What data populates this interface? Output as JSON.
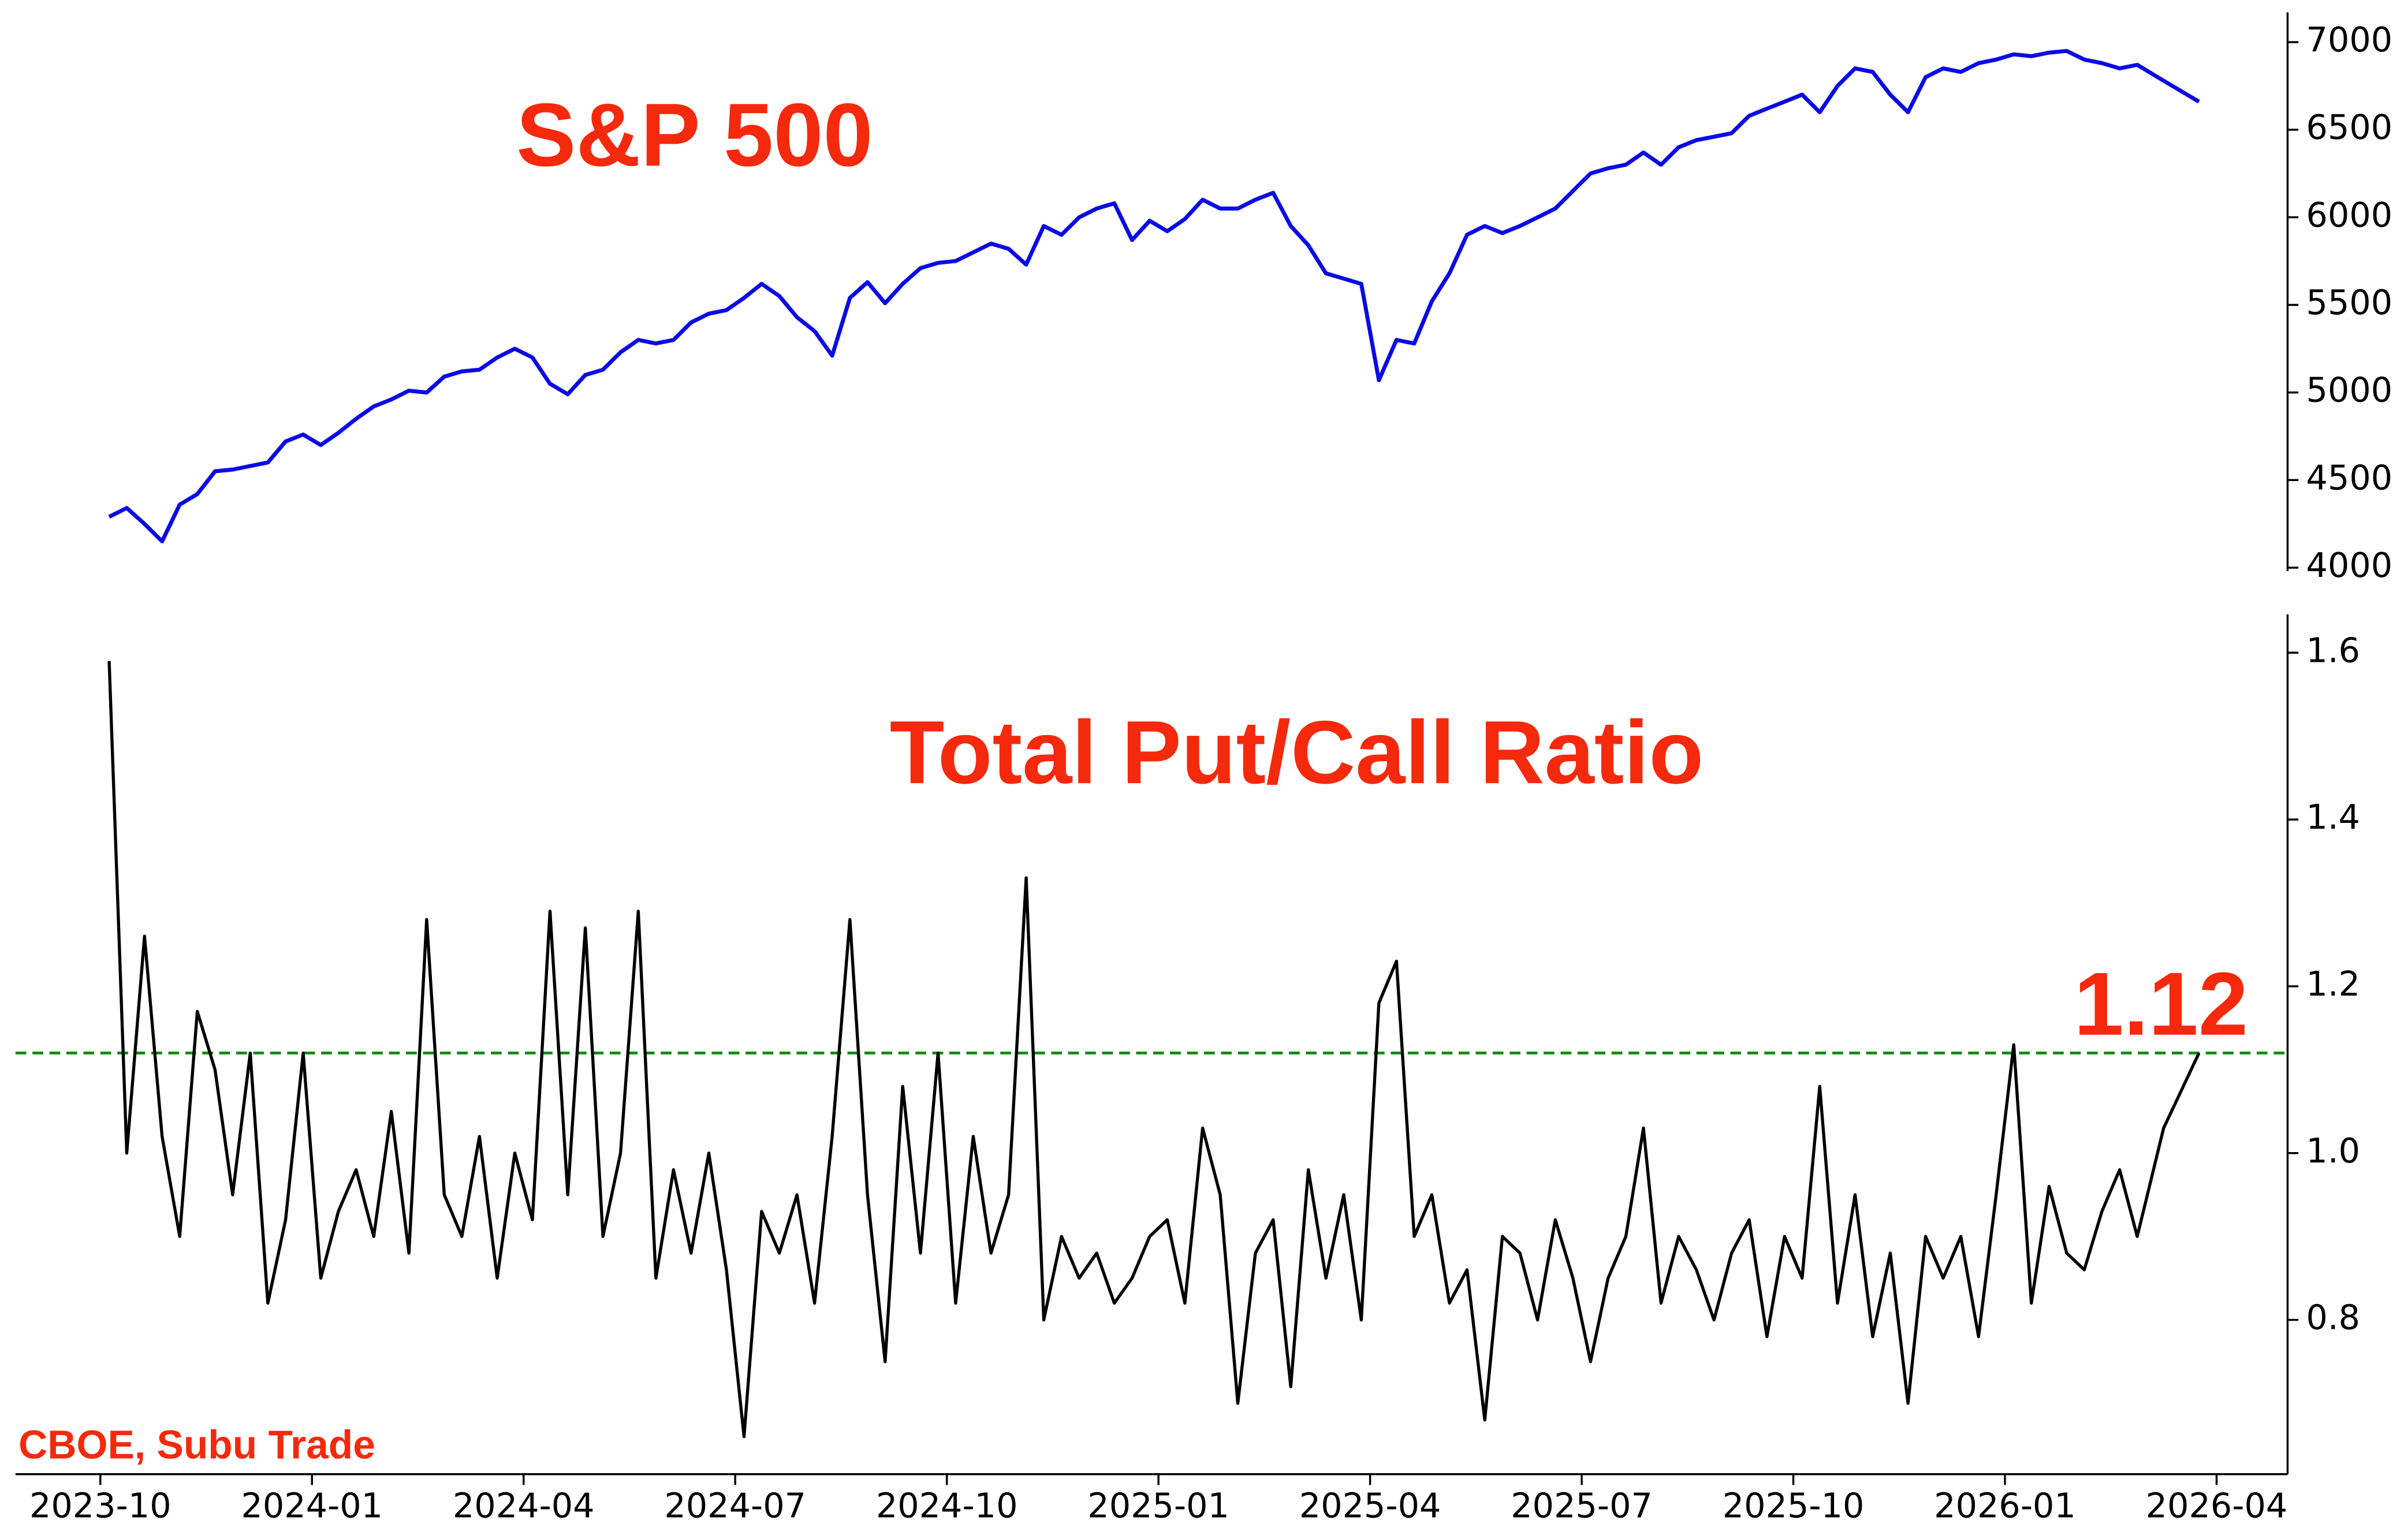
{
  "source": "CBOE, Subu Trade",
  "chart_data": [
    {
      "type": "line",
      "title": "S&P 500",
      "color": "#0a0ae6",
      "x": [
        "2023-10",
        "2023-10",
        "2023-10",
        "2023-10",
        "2023-11",
        "2023-11",
        "2023-11",
        "2023-11",
        "2023-12",
        "2023-12",
        "2023-12",
        "2023-12",
        "2024-01",
        "2024-01",
        "2024-01",
        "2024-01",
        "2024-02",
        "2024-02",
        "2024-02",
        "2024-02",
        "2024-03",
        "2024-03",
        "2024-03",
        "2024-03",
        "2024-04",
        "2024-04",
        "2024-04",
        "2024-04",
        "2024-05",
        "2024-05",
        "2024-05",
        "2024-05",
        "2024-06",
        "2024-06",
        "2024-06",
        "2024-06",
        "2024-07",
        "2024-07",
        "2024-07",
        "2024-07",
        "2024-08",
        "2024-08",
        "2024-08",
        "2024-08",
        "2024-09",
        "2024-09",
        "2024-09",
        "2024-09",
        "2024-10",
        "2024-10",
        "2024-10",
        "2024-10",
        "2024-11",
        "2024-11",
        "2024-11",
        "2024-11",
        "2024-12",
        "2024-12",
        "2024-12",
        "2024-12",
        "2025-01",
        "2025-01",
        "2025-01",
        "2025-01",
        "2025-02",
        "2025-02",
        "2025-02",
        "2025-02",
        "2025-03",
        "2025-03",
        "2025-03",
        "2025-03",
        "2025-04",
        "2025-04",
        "2025-04",
        "2025-04",
        "2025-05",
        "2025-05",
        "2025-05",
        "2025-05",
        "2025-06",
        "2025-06",
        "2025-06",
        "2025-06",
        "2025-07",
        "2025-07",
        "2025-07",
        "2025-07",
        "2025-08",
        "2025-08",
        "2025-08",
        "2025-08",
        "2025-09",
        "2025-09",
        "2025-09",
        "2025-09",
        "2025-10",
        "2025-10",
        "2025-10",
        "2025-10",
        "2025-11",
        "2025-11",
        "2025-11",
        "2025-11",
        "2025-12",
        "2025-12",
        "2025-12",
        "2025-12",
        "2026-01",
        "2026-01",
        "2026-01",
        "2026-01",
        "2026-02",
        "2026-02",
        "2026-02",
        "2026-02",
        "2026-03",
        "2026-03"
      ],
      "values": [
        4290,
        4340,
        4250,
        4150,
        4360,
        4420,
        4550,
        4560,
        4580,
        4600,
        4720,
        4760,
        4700,
        4770,
        4850,
        4920,
        4960,
        5010,
        5000,
        5090,
        5120,
        5130,
        5200,
        5250,
        5200,
        5050,
        4990,
        5100,
        5130,
        5230,
        5300,
        5280,
        5300,
        5400,
        5450,
        5470,
        5540,
        5620,
        5550,
        5430,
        5350,
        5210,
        5540,
        5630,
        5510,
        5620,
        5710,
        5740,
        5750,
        5800,
        5850,
        5820,
        5730,
        5950,
        5900,
        6000,
        6050,
        6080,
        5870,
        5980,
        5920,
        5990,
        6100,
        6050,
        6050,
        6100,
        6140,
        5950,
        5840,
        5680,
        5650,
        5620,
        5070,
        5300,
        5280,
        5520,
        5680,
        5900,
        5950,
        5910,
        5950,
        6000,
        6050,
        6150,
        6250,
        6280,
        6300,
        6370,
        6300,
        6400,
        6440,
        6460,
        6480,
        6580,
        6620,
        6660,
        6700,
        6600,
        6750,
        6850,
        6830,
        6700,
        6600,
        6800,
        6850,
        6830,
        6880,
        6900,
        6930,
        6920,
        6940,
        6950,
        6900,
        6880,
        6850,
        6870,
        6780,
        6660
      ],
      "ylim": [
        3980,
        7170
      ],
      "yticks": [
        4000,
        4500,
        5000,
        5500,
        6000,
        6500,
        7000
      ]
    },
    {
      "type": "line",
      "title": "Total Put/Call Ratio",
      "color": "#000000",
      "x": [
        "2023-10",
        "2023-10",
        "2023-10",
        "2023-10",
        "2023-11",
        "2023-11",
        "2023-11",
        "2023-11",
        "2023-12",
        "2023-12",
        "2023-12",
        "2023-12",
        "2024-01",
        "2024-01",
        "2024-01",
        "2024-01",
        "2024-02",
        "2024-02",
        "2024-02",
        "2024-02",
        "2024-03",
        "2024-03",
        "2024-03",
        "2024-03",
        "2024-04",
        "2024-04",
        "2024-04",
        "2024-04",
        "2024-05",
        "2024-05",
        "2024-05",
        "2024-05",
        "2024-06",
        "2024-06",
        "2024-06",
        "2024-06",
        "2024-07",
        "2024-07",
        "2024-07",
        "2024-07",
        "2024-08",
        "2024-08",
        "2024-08",
        "2024-08",
        "2024-09",
        "2024-09",
        "2024-09",
        "2024-09",
        "2024-10",
        "2024-10",
        "2024-10",
        "2024-10",
        "2024-11",
        "2024-11",
        "2024-11",
        "2024-11",
        "2024-12",
        "2024-12",
        "2024-12",
        "2024-12",
        "2025-01",
        "2025-01",
        "2025-01",
        "2025-01",
        "2025-02",
        "2025-02",
        "2025-02",
        "2025-02",
        "2025-03",
        "2025-03",
        "2025-03",
        "2025-03",
        "2025-04",
        "2025-04",
        "2025-04",
        "2025-04",
        "2025-05",
        "2025-05",
        "2025-05",
        "2025-05",
        "2025-06",
        "2025-06",
        "2025-06",
        "2025-06",
        "2025-07",
        "2025-07",
        "2025-07",
        "2025-07",
        "2025-08",
        "2025-08",
        "2025-08",
        "2025-08",
        "2025-09",
        "2025-09",
        "2025-09",
        "2025-09",
        "2025-10",
        "2025-10",
        "2025-10",
        "2025-10",
        "2025-11",
        "2025-11",
        "2025-11",
        "2025-11",
        "2025-12",
        "2025-12",
        "2025-12",
        "2025-12",
        "2026-01",
        "2026-01",
        "2026-01",
        "2026-01",
        "2026-02",
        "2026-02",
        "2026-02",
        "2026-02",
        "2026-03",
        "2026-03"
      ],
      "values": [
        1.59,
        1.0,
        1.26,
        1.02,
        0.9,
        1.17,
        1.1,
        0.95,
        1.12,
        0.82,
        0.92,
        1.12,
        0.85,
        0.93,
        0.98,
        0.9,
        1.05,
        0.88,
        1.28,
        0.95,
        0.9,
        1.02,
        0.85,
        1.0,
        0.92,
        1.29,
        0.95,
        1.27,
        0.9,
        1.0,
        1.29,
        0.85,
        0.98,
        0.88,
        1.0,
        0.86,
        0.66,
        0.93,
        0.88,
        0.95,
        0.82,
        1.02,
        1.28,
        0.95,
        0.75,
        1.08,
        0.88,
        1.12,
        0.82,
        1.02,
        0.88,
        0.95,
        1.33,
        0.8,
        0.9,
        0.85,
        0.88,
        0.82,
        0.85,
        0.9,
        0.92,
        0.82,
        1.03,
        0.95,
        0.7,
        0.88,
        0.92,
        0.72,
        0.98,
        0.85,
        0.95,
        0.8,
        1.18,
        1.23,
        0.9,
        0.95,
        0.82,
        0.86,
        0.68,
        0.9,
        0.88,
        0.8,
        0.92,
        0.85,
        0.75,
        0.85,
        0.9,
        1.03,
        0.82,
        0.9,
        0.86,
        0.8,
        0.88,
        0.92,
        0.78,
        0.9,
        0.85,
        1.08,
        0.82,
        0.95,
        0.78,
        0.88,
        0.7,
        0.9,
        0.85,
        0.9,
        0.78,
        0.95,
        1.13,
        0.82,
        0.96,
        0.88,
        0.86,
        0.93,
        0.98,
        0.9,
        1.03,
        1.12
      ],
      "ylim": [
        0.615,
        1.646
      ],
      "yticks": [
        0.8,
        {
          "value": 1,
          "label": "1.0"
        },
        1.2,
        1.4,
        1.6
      ],
      "reference_line": {
        "value": 1.12,
        "color": "#138a13",
        "style": "dashed"
      },
      "annotation": "1.12",
      "xticks": [
        "2023-10",
        "2024-01",
        "2024-04",
        "2024-07",
        "2024-10",
        "2025-01",
        "2025-04",
        "2025-07",
        "2025-10",
        "2026-01",
        "2026-04"
      ]
    }
  ]
}
